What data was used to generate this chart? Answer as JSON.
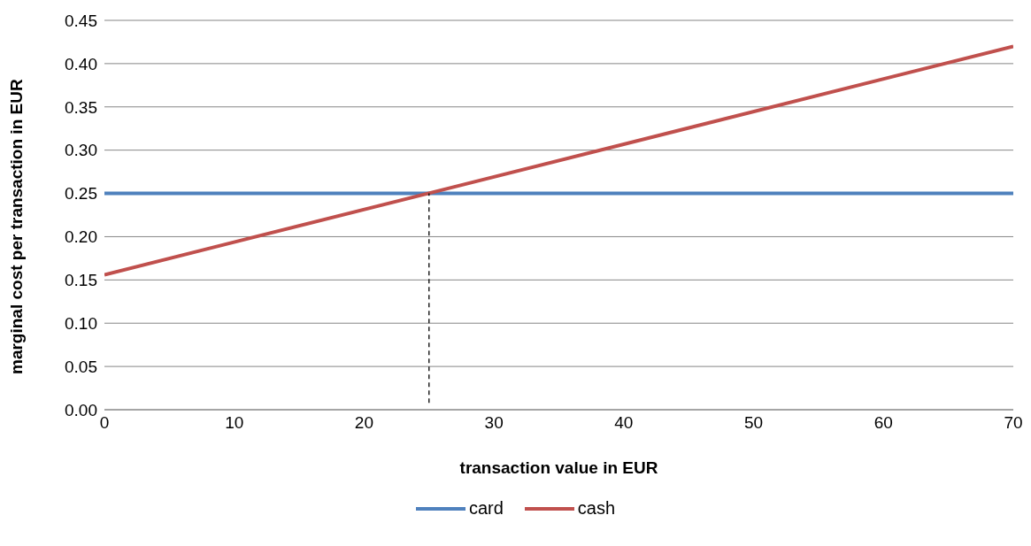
{
  "chart_data": {
    "type": "line",
    "xlabel": "transaction value in EUR",
    "ylabel": "marginal cost per transaction in EUR",
    "xlim": [
      0,
      70
    ],
    "xticks": [
      0,
      10,
      20,
      30,
      40,
      50,
      60,
      70
    ],
    "ylim": [
      0,
      0.45
    ],
    "yticks": [
      {
        "value": 0,
        "label": "0.00"
      },
      {
        "value": 0.05,
        "label": "0.05"
      },
      {
        "value": 0.1,
        "label": "0.10"
      },
      {
        "value": 0.15,
        "label": "0.15"
      },
      {
        "value": 0.2,
        "label": "0.20"
      },
      {
        "value": 0.25,
        "label": "0.25"
      },
      {
        "value": 0.3,
        "label": "0.30"
      },
      {
        "value": 0.35,
        "label": "0.35"
      },
      {
        "value": 0.4,
        "label": "0.40"
      },
      {
        "value": 0.45,
        "label": "0.45"
      }
    ],
    "grid": "y",
    "legend": "bottom",
    "marker": "none",
    "series": [
      {
        "name": "card",
        "color": "#4f81bd",
        "x": [
          0,
          70
        ],
        "values": [
          0.25,
          0.25
        ]
      },
      {
        "name": "cash",
        "color": "#c0504d",
        "x": [
          0,
          70
        ],
        "values": [
          0.156,
          0.42
        ]
      },
      {
        "color": "#000000",
        "x": [
          25,
          25
        ],
        "values": [
          0.008,
          0.25
        ],
        "line_style": "dashed"
      }
    ]
  }
}
